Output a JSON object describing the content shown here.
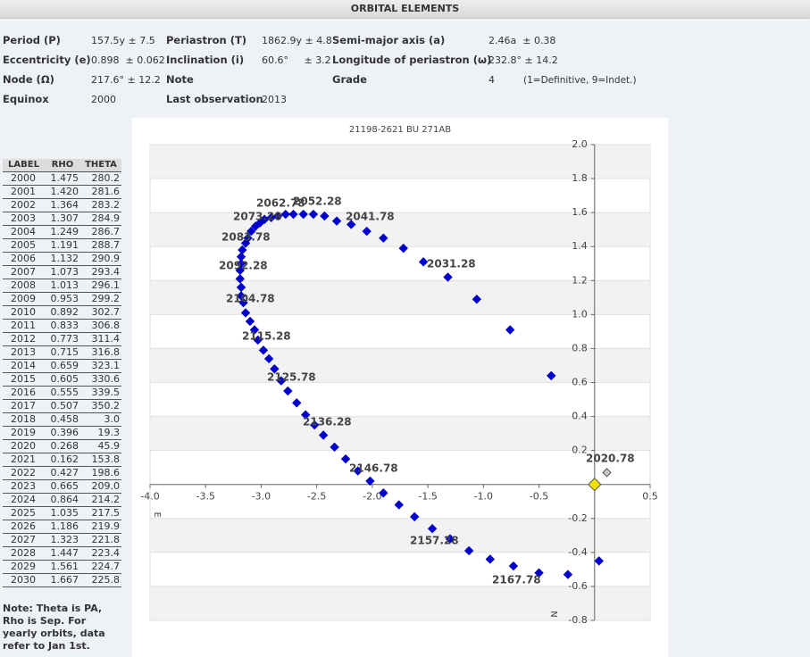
{
  "header": {
    "title": "ORBITAL ELEMENTS"
  },
  "elements": [
    [
      {
        "label": "Period (P)",
        "value": "157.5y ± 7.5"
      },
      {
        "label": "Periastron (T)",
        "value": "1862.9y ± 4.8"
      },
      {
        "label": "Semi-major axis (a)",
        "value": "2.46a  ± 0.38"
      }
    ],
    [
      {
        "label": "Eccentricity (e)",
        "value": "0.898  ± 0.062"
      },
      {
        "label": "Inclination (i)",
        "value": "60.6°     ± 3.2"
      },
      {
        "label": "Longitude of periastron (ω)",
        "value": "232.8° ± 14.2"
      }
    ],
    [
      {
        "label": "Node (Ω)",
        "value": "217.6° ± 12.2"
      },
      {
        "label": "Note"
      },
      {
        "label": "Grade",
        "value": "4",
        "remark": "(1=Definitive, 9=Indet.)"
      }
    ],
    [
      {
        "label": "Equinox",
        "value": "2000"
      },
      {
        "label": "Last observation",
        "value": "2013"
      }
    ]
  ],
  "orbit_table": {
    "header": [
      "LABEL",
      "RHO",
      "THETA"
    ],
    "rows": [
      [
        "2000",
        "1.475",
        "280.2"
      ],
      [
        "2001",
        "1.420",
        "281.6"
      ],
      [
        "2002",
        "1.364",
        "283.2"
      ],
      [
        "2003",
        "1.307",
        "284.9"
      ],
      [
        "2004",
        "1.249",
        "286.7"
      ],
      [
        "2005",
        "1.191",
        "288.7"
      ],
      [
        "2006",
        "1.132",
        "290.9"
      ],
      [
        "2007",
        "1.073",
        "293.4"
      ],
      [
        "2008",
        "1.013",
        "296.1"
      ],
      [
        "2009",
        "0.953",
        "299.2"
      ],
      [
        "2010",
        "0.892",
        "302.7"
      ],
      [
        "2011",
        "0.833",
        "306.8"
      ],
      [
        "2012",
        "0.773",
        "311.4"
      ],
      [
        "2013",
        "0.715",
        "316.8"
      ],
      [
        "2014",
        "0.659",
        "323.1"
      ],
      [
        "2015",
        "0.605",
        "330.6"
      ],
      [
        "2016",
        "0.555",
        "339.5"
      ],
      [
        "2017",
        "0.507",
        "350.2"
      ],
      [
        "2018",
        "0.458",
        "3.0"
      ],
      [
        "2019",
        "0.396",
        "19.3"
      ],
      [
        "2020",
        "0.268",
        "45.9"
      ],
      [
        "2021",
        "0.162",
        "153.8"
      ],
      [
        "2022",
        "0.427",
        "198.6"
      ],
      [
        "2023",
        "0.665",
        "209.0"
      ],
      [
        "2024",
        "0.864",
        "214.2"
      ],
      [
        "2025",
        "1.035",
        "217.5"
      ],
      [
        "2026",
        "1.186",
        "219.9"
      ],
      [
        "2027",
        "1.323",
        "221.8"
      ],
      [
        "2028",
        "1.447",
        "223.4"
      ],
      [
        "2029",
        "1.561",
        "224.7"
      ],
      [
        "2030",
        "1.667",
        "225.8"
      ]
    ]
  },
  "note": "Note: Theta is PA, Rho is Sep. For yearly orbits, data refer to Jan 1st.",
  "chart_data": {
    "type": "scatter",
    "title": "21198-2621 BU  271AB",
    "xlim": [
      -4,
      0.5
    ],
    "ylim": [
      -0.8,
      2.0
    ],
    "xticks": [
      {
        "value": -4,
        "label": "-4.0"
      },
      -3.5,
      {
        "value": -3,
        "label": "-3.0"
      },
      -2.5,
      {
        "value": -2,
        "label": "-2.0"
      },
      -1.5,
      {
        "value": -1,
        "label": "-1.0"
      },
      -0.5,
      0.5
    ],
    "yticks": [
      {
        "value": 2,
        "label": "2.0"
      },
      1.8,
      1.6,
      1.4,
      1.2,
      {
        "value": 1,
        "label": "1.0"
      },
      0.8,
      0.6,
      0.4,
      0.2,
      -0.2,
      -0.4,
      -0.6,
      -0.8
    ],
    "grid": true,
    "east_label": "E",
    "north_label": "N",
    "series": [
      {
        "color": "#0000cc",
        "x": [
          0.04,
          -0.24,
          -0.5,
          -0.73,
          -0.94,
          -1.13,
          -1.3,
          -1.46,
          -1.62,
          -1.76,
          -1.9,
          -2.02,
          -2.13,
          -2.24,
          -2.34,
          -2.44,
          -2.52,
          -2.6,
          -2.68,
          -2.76,
          -2.82,
          -2.88,
          -2.93,
          -2.98,
          -3.03,
          -3.06,
          -3.1,
          -3.14,
          -3.16,
          -3.18,
          -3.18,
          -3.19,
          -3.19,
          -3.18,
          -3.18,
          -3.17,
          -3.14,
          -3.12,
          -3.09,
          -3.05,
          -3.01,
          -2.97,
          -2.91,
          -2.85,
          -2.78,
          -2.71,
          -2.62,
          -2.53,
          -2.43,
          -2.32,
          -2.19,
          -2.05,
          -1.9,
          -1.72,
          -1.54,
          -1.32,
          -1.06,
          -0.76,
          -0.39
        ],
        "y": [
          -0.45,
          -0.53,
          -0.52,
          -0.48,
          -0.44,
          -0.39,
          -0.32,
          -0.26,
          -0.19,
          -0.12,
          -0.05,
          0.02,
          0.08,
          0.15,
          0.22,
          0.29,
          0.35,
          0.41,
          0.48,
          0.55,
          0.61,
          0.68,
          0.74,
          0.79,
          0.85,
          0.91,
          0.96,
          1.01,
          1.07,
          1.11,
          1.16,
          1.21,
          1.26,
          1.3,
          1.34,
          1.38,
          1.42,
          1.45,
          1.49,
          1.52,
          1.54,
          1.56,
          1.57,
          1.58,
          1.59,
          1.59,
          1.59,
          1.59,
          1.58,
          1.55,
          1.53,
          1.49,
          1.45,
          1.39,
          1.31,
          1.22,
          1.09,
          0.91,
          0.64
        ]
      },
      {
        "color": "#c8c8c8",
        "x": [
          0.11
        ],
        "y": [
          0.07
        ]
      },
      {
        "color": "#f0e000",
        "x": [
          0
        ],
        "y": [
          0
        ]
      }
    ],
    "annotations": [
      "2062.78",
      "2052.28",
      "2073.28",
      "2041.78",
      "2083.78",
      "2092.28",
      "2031.28",
      "2104.78",
      "2115.28",
      "2125.78",
      "2136.28",
      "2146.78",
      "2020.78",
      "2157.28",
      "2167.78"
    ],
    "annotation_color": "#8b0000"
  }
}
